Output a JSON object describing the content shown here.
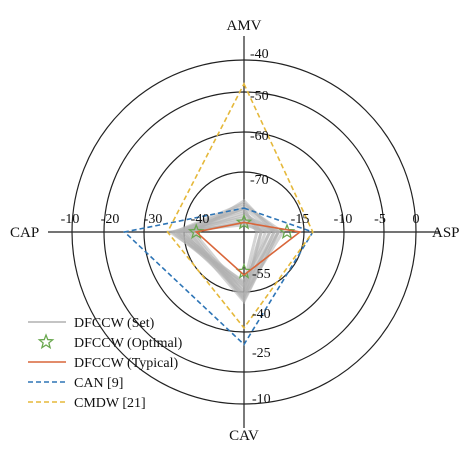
{
  "chart_data": {
    "type": "radar",
    "axes": [
      {
        "name": "AMV",
        "ticks": [
          "-40",
          "-50",
          "-60",
          "-70"
        ]
      },
      {
        "name": "ASP",
        "ticks": [
          "-15",
          "-10",
          "-5",
          "0"
        ]
      },
      {
        "name": "CAV",
        "ticks": [
          "-55",
          "-40",
          "-25",
          "-10"
        ]
      },
      {
        "name": "CAP",
        "ticks": [
          "-40",
          "-30",
          "-20",
          "-10"
        ]
      }
    ],
    "series": [
      {
        "name": "DFCCW (Set)",
        "color": "#b0b0b0",
        "style": "solid",
        "values": [
          -72,
          -17,
          -44,
          -33
        ]
      },
      {
        "name": "DFCCW (Optimal)",
        "color": "#6aa84f",
        "style": "star-marker",
        "values": [
          -74,
          -15,
          -50,
          -36
        ]
      },
      {
        "name": "DFCCW (Typical)",
        "color": "#d9663a",
        "style": "solid",
        "values": [
          -74,
          -13.5,
          -49,
          -36
        ]
      },
      {
        "name": "CAN [9]",
        "color": "#2e75b6",
        "style": "dashed",
        "values": [
          -71,
          -12,
          -28,
          -21
        ]
      },
      {
        "name": "CMDW [21]",
        "color": "#e5b83a",
        "style": "dashed",
        "values": [
          -45,
          -12,
          -33,
          -30
        ]
      }
    ],
    "legend_position": "bottom-left"
  }
}
